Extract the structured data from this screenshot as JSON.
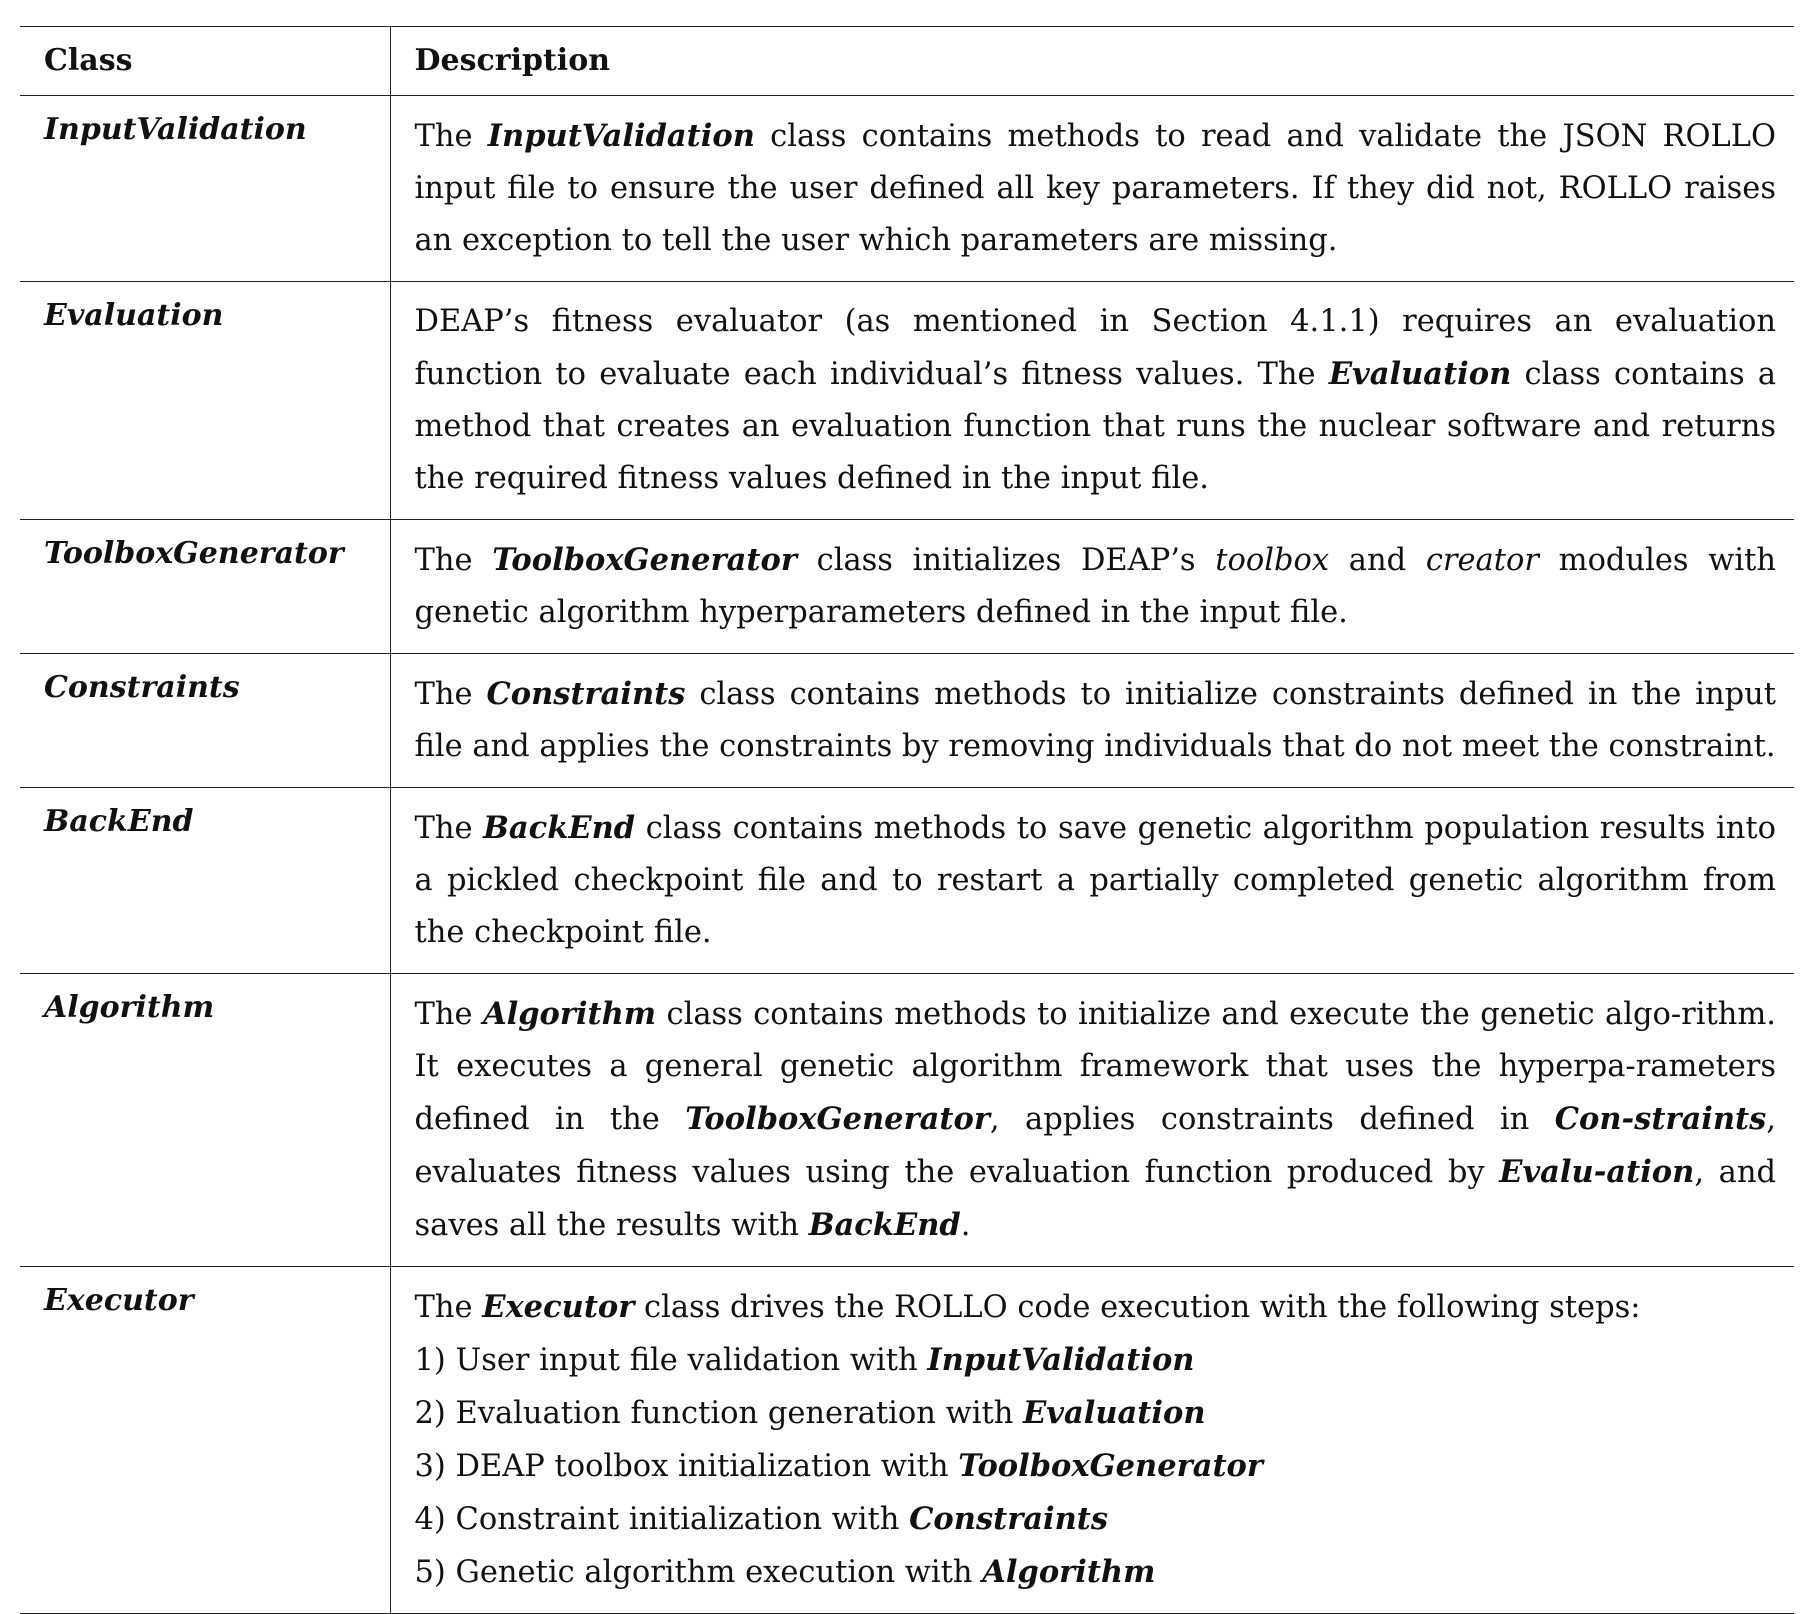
{
  "header": {
    "class_label": "Class",
    "description_label": "Description"
  },
  "rows": [
    {
      "class": "InputValidation",
      "desc": [
        {
          "t": "The "
        },
        {
          "t": "InputValidation",
          "s": "bi"
        },
        {
          "t": " class contains methods to read and validate the JSON ROLLO input file to ensure the user defined all key parameters. If they did not, ROLLO raises an exception to tell the user which parameters are missing."
        }
      ]
    },
    {
      "class": "Evaluation",
      "desc": [
        {
          "t": "DEAP’s fitness evaluator (as mentioned in Section 4.1.1) requires an evaluation function to evaluate each individual’s fitness values. The "
        },
        {
          "t": "Evaluation",
          "s": "bi"
        },
        {
          "t": " class contains a method that creates an evaluation function that runs the nuclear software and returns the required fitness values defined in the input file."
        }
      ]
    },
    {
      "class": "ToolboxGenerator",
      "desc": [
        {
          "t": "The "
        },
        {
          "t": "ToolboxGenerator",
          "s": "bi"
        },
        {
          "t": " class initializes DEAP’s "
        },
        {
          "t": "toolbox",
          "s": "it"
        },
        {
          "t": " and "
        },
        {
          "t": "creator",
          "s": "it"
        },
        {
          "t": " modules with genetic algorithm hyperparameters defined in the input file."
        }
      ]
    },
    {
      "class": "Constraints",
      "desc": [
        {
          "t": "The "
        },
        {
          "t": "Constraints",
          "s": "bi"
        },
        {
          "t": " class contains methods to initialize constraints defined in the input file and applies the constraints by removing individuals that do not meet the constraint."
        }
      ]
    },
    {
      "class": "BackEnd",
      "desc": [
        {
          "t": "The "
        },
        {
          "t": "BackEnd",
          "s": "bi"
        },
        {
          "t": " class contains methods to save genetic algorithm population results into a pickled checkpoint file and to restart a partially completed genetic algorithm from the checkpoint file."
        }
      ]
    },
    {
      "class": "Algorithm",
      "desc": [
        {
          "t": "The "
        },
        {
          "t": "Algorithm",
          "s": "bi"
        },
        {
          "t": " class contains methods to initialize and execute the genetic algo-rithm. It executes a general genetic algorithm framework that uses the hyperpa-rameters defined in the "
        },
        {
          "t": "ToolboxGenerator",
          "s": "bi"
        },
        {
          "t": ", applies constraints defined in "
        },
        {
          "t": "Con-straints",
          "s": "bi"
        },
        {
          "t": ", evaluates fitness values using the evaluation function produced by "
        },
        {
          "t": "Evalu-ation",
          "s": "bi"
        },
        {
          "t": ", and saves all the results with "
        },
        {
          "t": "BackEnd",
          "s": "bi"
        },
        {
          "t": "."
        }
      ]
    },
    {
      "class": "Executor",
      "desc": [
        {
          "t": "The "
        },
        {
          "t": "Executor",
          "s": "bi"
        },
        {
          "t": " class drives the ROLLO code execution with the following steps:"
        }
      ],
      "steps": [
        [
          {
            "t": "1) User input file validation with "
          },
          {
            "t": "InputValidation",
            "s": "bi"
          }
        ],
        [
          {
            "t": "2) Evaluation function generation with "
          },
          {
            "t": "Evaluation",
            "s": "bi"
          }
        ],
        [
          {
            "t": "3) DEAP toolbox initialization with "
          },
          {
            "t": "ToolboxGenerator",
            "s": "bi"
          }
        ],
        [
          {
            "t": "4) Constraint initialization with "
          },
          {
            "t": "Constraints",
            "s": "bi"
          }
        ],
        [
          {
            "t": "5) Genetic algorithm execution with "
          },
          {
            "t": "Algorithm",
            "s": "bi"
          }
        ]
      ]
    }
  ]
}
